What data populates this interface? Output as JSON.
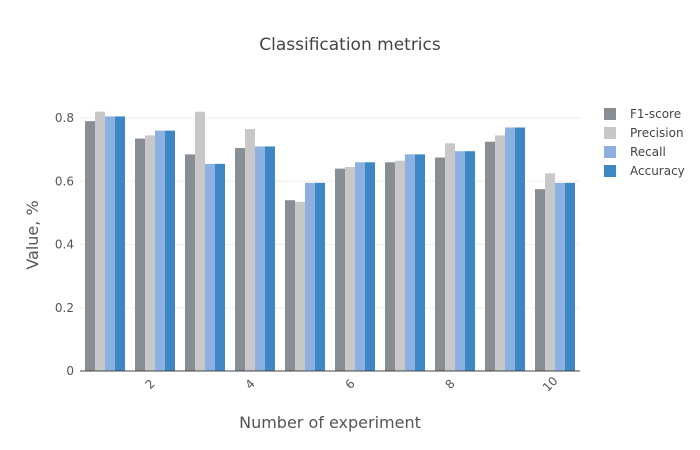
{
  "chart_data": {
    "type": "bar",
    "title": "Classification metrics",
    "xlabel": "Number of experiment",
    "ylabel": "Value, %",
    "x": [
      1,
      2,
      3,
      4,
      5,
      6,
      7,
      8,
      9,
      10
    ],
    "xticks": [
      2,
      4,
      6,
      8,
      10
    ],
    "yticks": [
      0,
      0.2,
      0.4,
      0.6,
      0.8
    ],
    "ylim": [
      0,
      0.8
    ],
    "grid": true,
    "legend_position": "right",
    "series": [
      {
        "name": "F1-score",
        "color": "#898e94",
        "values": [
          0.79,
          0.735,
          0.685,
          0.705,
          0.54,
          0.64,
          0.66,
          0.675,
          0.725,
          0.575
        ]
      },
      {
        "name": "Precision",
        "color": "#c8c8c8",
        "values": [
          0.82,
          0.745,
          0.82,
          0.765,
          0.535,
          0.645,
          0.665,
          0.72,
          0.745,
          0.625
        ]
      },
      {
        "name": "Recall",
        "color": "#8cb0e0",
        "values": [
          0.805,
          0.76,
          0.655,
          0.71,
          0.595,
          0.66,
          0.685,
          0.695,
          0.77,
          0.595
        ]
      },
      {
        "name": "Accuracy",
        "color": "#3c87c4",
        "values": [
          0.805,
          0.76,
          0.655,
          0.71,
          0.595,
          0.66,
          0.685,
          0.695,
          0.77,
          0.595
        ]
      }
    ]
  }
}
